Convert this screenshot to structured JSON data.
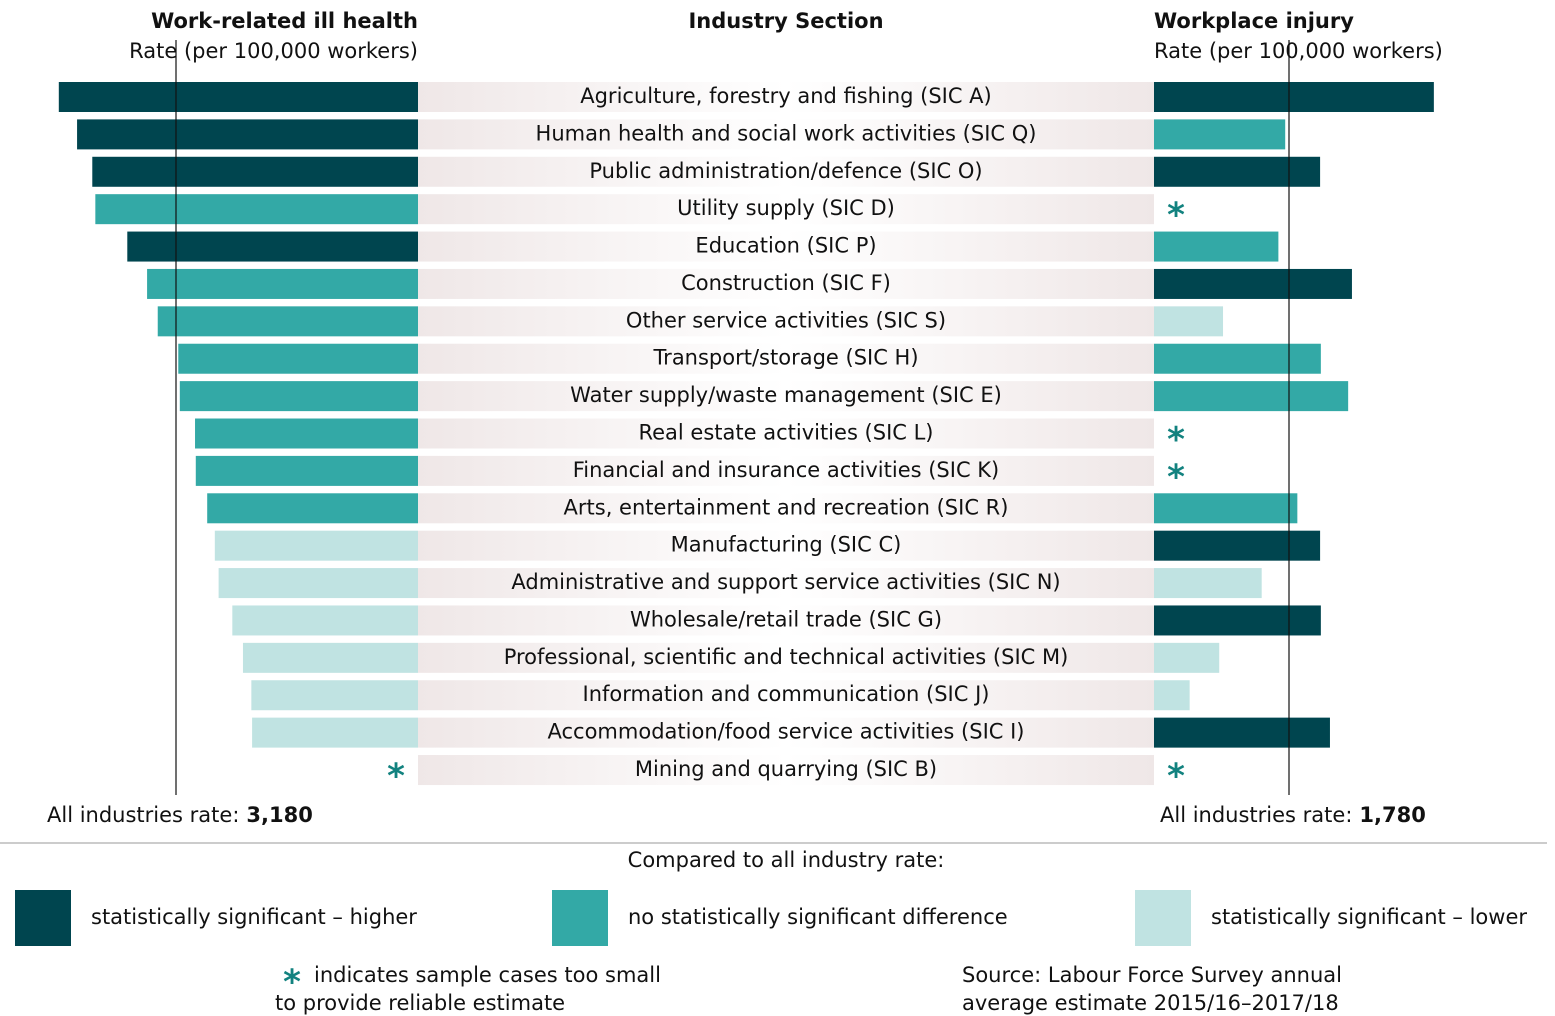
{
  "chart_data": {
    "type": "butterfly",
    "title": "Industry Section",
    "categories": [
      "Agriculture, forestry and fishing (SIC A)",
      "Human health and social work activities (SIC Q)",
      "Public administration/defence (SIC O)",
      "Utility supply (SIC D)",
      "Education (SIC P)",
      "Construction (SIC F)",
      "Other service activities (SIC S)",
      "Transport/storage (SIC H)",
      "Water supply/waste management (SIC E)",
      "Real estate activities (SIC L)",
      "Financial and insurance activities (SIC K)",
      "Arts, entertainment and recreation (SIC R)",
      "Manufacturing (SIC C)",
      "Administrative and support service activities (SIC N)",
      "Wholesale/retail trade (SIC G)",
      "Professional, scientific and technical activities (SIC M)",
      "Information and communication (SIC J)",
      "Accommodation/food service activities (SIC I)",
      "Mining and quarrying (SIC B)"
    ],
    "series": [
      {
        "name": "Work-related ill health",
        "unit_label": "Rate (per 100,000 workers)",
        "values": [
          4720,
          4480,
          4280,
          4240,
          3820,
          3560,
          3420,
          3150,
          3130,
          2930,
          2920,
          2770,
          2670,
          2620,
          2440,
          2300,
          2190,
          2180,
          null
        ],
        "colors": [
          "#00454f",
          "#00454f",
          "#00454f",
          "#33a9a6",
          "#00454f",
          "#33a9a6",
          "#33a9a6",
          "#33a9a6",
          "#33a9a6",
          "#33a9a6",
          "#33a9a6",
          "#33a9a6",
          "#c0e3e2",
          "#c0e3e2",
          "#c0e3e2",
          "#c0e3e2",
          "#c0e3e2",
          "#c0e3e2",
          null
        ],
        "reference": 3180,
        "reference_label": "3,180"
      },
      {
        "name": "Workplace injury",
        "unit_label": "Rate (per 100,000 workers)",
        "values": [
          3690,
          1730,
          2190,
          null,
          1640,
          2610,
          910,
          2200,
          2560,
          null,
          null,
          1890,
          2190,
          1420,
          2200,
          860,
          470,
          2320,
          null
        ],
        "colors": [
          "#00454f",
          "#33a9a6",
          "#00454f",
          null,
          "#33a9a6",
          "#00454f",
          "#c0e3e2",
          "#33a9a6",
          "#33a9a6",
          null,
          null,
          "#33a9a6",
          "#00454f",
          "#c0e3e2",
          "#00454f",
          "#c0e3e2",
          "#c0e3e2",
          "#00454f",
          null
        ],
        "reference": 1780,
        "reference_label": "1,780"
      }
    ],
    "reference_text": "All industries rate:",
    "legend_title": "Compared to all industry rate:",
    "legend": [
      {
        "label": "statistically significant – higher",
        "color": "#00454f"
      },
      {
        "label": "no statistically significant difference",
        "color": "#33a9a6"
      },
      {
        "label": "statistically significant – lower",
        "color": "#c0e3e2"
      }
    ],
    "asterisk": "*",
    "asterisk_color": "#12827f",
    "footnote": [
      "indicates sample cases too small",
      "to provide reliable estimate"
    ],
    "source": [
      "Source: Labour Force Survey annual",
      "average estimate 2015/16–2017/18"
    ]
  }
}
